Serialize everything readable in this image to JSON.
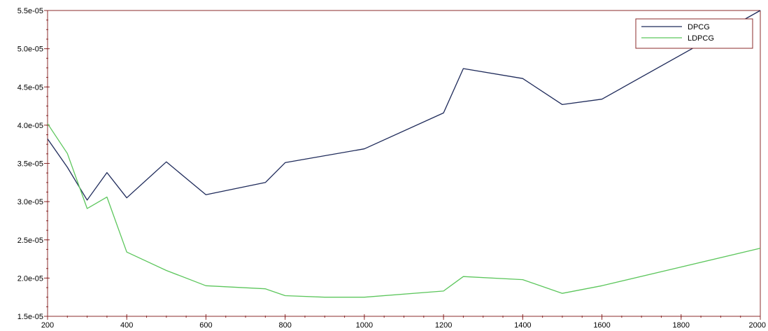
{
  "chart_data": {
    "type": "line",
    "title": "",
    "xlabel": "",
    "ylabel": "",
    "xlim": [
      200,
      2000
    ],
    "ylim": [
      1.5e-05,
      5.5e-05
    ],
    "grid": false,
    "legend_position": "top-right",
    "x_ticks": [
      200,
      400,
      600,
      800,
      1000,
      1200,
      1400,
      1600,
      1800,
      2000
    ],
    "x_tick_labels": [
      "200",
      "400",
      "600",
      "800",
      "1000",
      "1200",
      "1400",
      "1600",
      "1800",
      "2000"
    ],
    "y_ticks": [
      1.5e-05,
      2e-05,
      2.5e-05,
      3e-05,
      3.5e-05,
      4e-05,
      4.5e-05,
      5e-05,
      5.5e-05
    ],
    "y_tick_labels": [
      "1.5e-05",
      "2.0e-05",
      "2.5e-05",
      "3.0e-05",
      "3.5e-05",
      "4.0e-05",
      "4.5e-05",
      "5.0e-05",
      "5.5e-05"
    ],
    "series": [
      {
        "name": "DPCG",
        "color": "#1e2a5a",
        "x": [
          200,
          250,
          300,
          350,
          400,
          500,
          600,
          750,
          800,
          1000,
          1200,
          1250,
          1400,
          1500,
          1600,
          2000
        ],
        "y": [
          3.82e-05,
          3.45e-05,
          3.02e-05,
          3.38e-05,
          3.05e-05,
          3.52e-05,
          3.09e-05,
          3.25e-05,
          3.51e-05,
          3.69e-05,
          4.16e-05,
          4.74e-05,
          4.61e-05,
          4.27e-05,
          4.34e-05,
          5.5e-05
        ]
      },
      {
        "name": "LDPCG",
        "color": "#5cc65c",
        "x": [
          200,
          250,
          300,
          350,
          400,
          500,
          600,
          750,
          800,
          900,
          1000,
          1200,
          1250,
          1400,
          1500,
          1600,
          2000
        ],
        "y": [
          4.02e-05,
          3.63e-05,
          2.91e-05,
          3.06e-05,
          2.34e-05,
          2.1e-05,
          1.9e-05,
          1.86e-05,
          1.77e-05,
          1.75e-05,
          1.75e-05,
          1.83e-05,
          2.02e-05,
          1.98e-05,
          1.8e-05,
          1.9e-05,
          2.39e-05
        ]
      }
    ]
  }
}
